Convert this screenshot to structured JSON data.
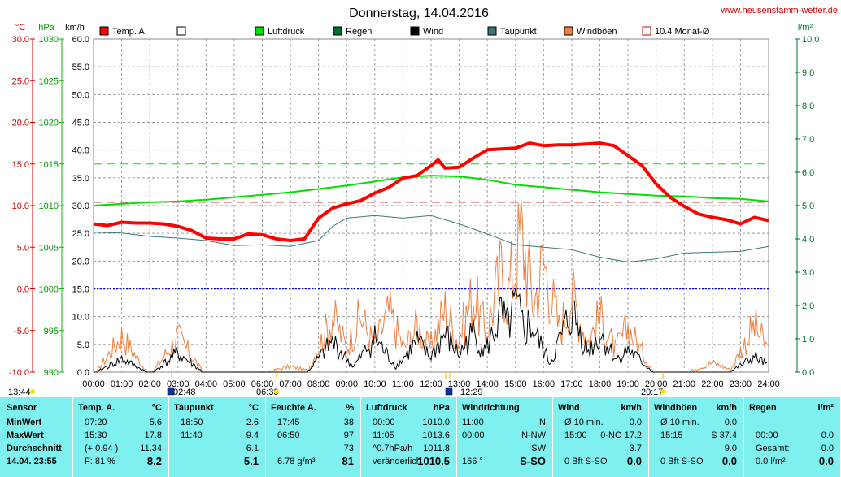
{
  "page": {
    "title": "Donnerstag, 14.04.2016",
    "site": "www.heusenstamm-wetter.de"
  },
  "colors": {
    "temp": "#ff0000",
    "luftdruck": "#00e000",
    "regen": "#007030",
    "wind": "#000000",
    "taupunkt": "#3a7878",
    "windboeen": "#f08040",
    "monat": "#c00000",
    "stats_bg": "#7ff0f0"
  },
  "chart_data": {
    "type": "line",
    "title": "Donnerstag, 14.04.2016",
    "x_ticks": [
      "00:00",
      "01:00",
      "02:00",
      "03:00",
      "04:00",
      "05:00",
      "06:00",
      "07:00",
      "08:00",
      "09:00",
      "10:00",
      "11:00",
      "12:00",
      "13:00",
      "14:00",
      "15:00",
      "16:00",
      "17:00",
      "18:00",
      "19:00",
      "20:00",
      "21:00",
      "22:00",
      "23:00",
      "24:00"
    ],
    "axes": {
      "temp": {
        "unit": "°C",
        "ticks": [
          "30.0",
          "25.0",
          "20.0",
          "15.0",
          "10.0",
          "5.0",
          "0.0",
          "-5.0",
          "-10.0"
        ],
        "range": [
          -10,
          30
        ]
      },
      "pressure": {
        "unit": "hPa",
        "ticks": [
          "1030",
          "1025",
          "1020",
          "1015",
          "1010",
          "1005",
          "1000",
          "995",
          "990"
        ],
        "range": [
          990,
          1030
        ]
      },
      "wind": {
        "unit": "km/h",
        "ticks": [
          "60.0",
          "55.0",
          "50.0",
          "45.0",
          "40.0",
          "35.0",
          "30.0",
          "25.0",
          "20.0",
          "15.0",
          "10.0",
          "5.0",
          "0.0"
        ],
        "range": [
          0,
          60
        ]
      },
      "rain": {
        "unit": "l/m²",
        "ticks": [
          "10.0",
          "9.0",
          "8.0",
          "7.0",
          "6.0",
          "5.0",
          "4.0",
          "3.0",
          "2.0",
          "1.0",
          "0.0"
        ],
        "range": [
          0,
          10
        ]
      }
    },
    "legend": [
      {
        "label": "Temp. A.",
        "color": "#ff0000",
        "style": "filled"
      },
      {
        "label": "",
        "color": "#000000",
        "style": "empty"
      },
      {
        "label": "Luftdruck",
        "color": "#00e000",
        "style": "filled"
      },
      {
        "label": "Regen",
        "color": "#007030",
        "style": "filled"
      },
      {
        "label": "Wind",
        "color": "#000000",
        "style": "filled"
      },
      {
        "label": "Taupunkt",
        "color": "#3a7878",
        "style": "filled"
      },
      {
        "label": "Windböen",
        "color": "#f08040",
        "style": "filled"
      },
      {
        "label": "10.4 Monat-Ø",
        "color": "#c00000",
        "style": "empty"
      }
    ],
    "series": [
      {
        "name": "Temp. A.",
        "axis": "temp",
        "x": [
          0,
          0.5,
          1,
          1.5,
          2,
          2.5,
          3,
          3.5,
          4,
          4.5,
          5,
          5.5,
          6,
          6.5,
          7,
          7.5,
          8,
          8.5,
          9,
          9.5,
          10,
          10.5,
          11,
          11.5,
          12,
          12.25,
          12.5,
          13,
          13.5,
          14,
          14.5,
          15,
          15.5,
          16,
          16.5,
          17,
          17.5,
          18,
          18.5,
          19,
          19.5,
          20,
          20.5,
          21,
          21.5,
          22,
          22.5,
          23,
          23.5,
          24
        ],
        "values": [
          7.8,
          7.6,
          8.0,
          7.9,
          7.9,
          7.8,
          7.5,
          7.0,
          6.1,
          6.0,
          6.0,
          6.6,
          6.5,
          6.0,
          5.8,
          6.0,
          8.5,
          9.7,
          10.2,
          10.6,
          11.5,
          12.2,
          13.3,
          13.6,
          14.8,
          15.5,
          14.5,
          14.6,
          15.7,
          16.7,
          16.8,
          16.9,
          17.5,
          17.2,
          17.3,
          17.3,
          17.4,
          17.5,
          17.2,
          16.0,
          14.8,
          12.6,
          11.0,
          9.9,
          9.0,
          8.6,
          8.3,
          7.8,
          8.6,
          8.2
        ]
      },
      {
        "name": "Luftdruck",
        "axis": "pressure",
        "x": [
          0,
          1,
          2,
          3,
          4,
          5,
          6,
          7,
          8,
          9,
          10,
          11,
          12,
          13,
          14,
          15,
          16,
          17,
          18,
          19,
          20,
          21,
          22,
          23,
          24
        ],
        "values": [
          1010.0,
          1010.2,
          1010.4,
          1010.5,
          1010.7,
          1011.0,
          1011.3,
          1011.6,
          1012.0,
          1012.4,
          1012.9,
          1013.4,
          1013.6,
          1013.5,
          1013.1,
          1012.5,
          1012.2,
          1011.9,
          1011.6,
          1011.4,
          1011.2,
          1011.1,
          1010.9,
          1010.8,
          1010.5
        ]
      },
      {
        "name": "Taupunkt",
        "axis": "temp",
        "x": [
          0,
          1,
          2,
          3,
          4,
          5,
          6,
          7,
          8,
          8.5,
          9,
          10,
          11,
          12,
          13,
          14,
          15,
          16,
          17,
          18,
          19,
          20,
          21,
          22,
          23,
          24
        ],
        "values": [
          6.8,
          6.7,
          6.3,
          6.1,
          5.8,
          5.2,
          5.3,
          5.1,
          5.8,
          7.5,
          8.5,
          8.8,
          8.5,
          8.8,
          7.8,
          6.6,
          5.3,
          5.0,
          4.7,
          3.8,
          3.2,
          3.6,
          4.3,
          4.4,
          4.5,
          5.1
        ]
      },
      {
        "name": "Windböen",
        "axis": "wind",
        "peaks": [
          [
            1.0,
            9.8
          ],
          [
            3.0,
            9.5
          ],
          [
            7.0,
            1.5
          ],
          [
            8.5,
            15.0
          ],
          [
            9.5,
            15.0
          ],
          [
            10.5,
            16.0
          ],
          [
            11.5,
            12.5
          ],
          [
            12.5,
            17.0
          ],
          [
            13.5,
            21.0
          ],
          [
            14.5,
            27.0
          ],
          [
            15.0,
            30.0
          ],
          [
            15.2,
            37.4
          ],
          [
            16.0,
            30.0
          ],
          [
            17.0,
            21.0
          ],
          [
            18.0,
            15.0
          ],
          [
            19.0,
            12.0
          ],
          [
            22.0,
            2.5
          ],
          [
            23.5,
            12.5
          ]
        ]
      },
      {
        "name": "Wind",
        "axis": "wind",
        "peaks": [
          [
            1.0,
            3.5
          ],
          [
            3.0,
            5.0
          ],
          [
            8.5,
            8.0
          ],
          [
            10.0,
            9.0
          ],
          [
            11.5,
            8.0
          ],
          [
            12.5,
            10.0
          ],
          [
            13.5,
            10.5
          ],
          [
            14.5,
            15.0
          ],
          [
            15.0,
            17.2
          ],
          [
            15.5,
            13.0
          ],
          [
            17.0,
            16.0
          ],
          [
            18.0,
            10.0
          ],
          [
            19.0,
            6.0
          ],
          [
            23.5,
            4.0
          ]
        ]
      }
    ],
    "reference_lines": [
      {
        "axis": "pressure",
        "value": 1015,
        "color": "#00e000",
        "style": "dashed"
      },
      {
        "axis": "temp",
        "value": 10.4,
        "color": "#c00000",
        "style": "dashed"
      },
      {
        "axis": "temp",
        "value": 0,
        "color": "#0000ff",
        "style": "dotted"
      }
    ],
    "events": [
      {
        "time": "13:44"
      },
      {
        "time": "02:48"
      },
      {
        "time": "06:33"
      },
      {
        "time": "12:29"
      },
      {
        "time": "20:17"
      }
    ]
  },
  "stats": {
    "cols": [
      {
        "head": [
          "Sensor",
          ""
        ],
        "rows": [
          [
            "MinWert",
            ""
          ],
          [
            "MaxWert",
            ""
          ],
          [
            "Durchschnitt",
            ""
          ],
          [
            "14.04. 23:55",
            ""
          ]
        ]
      },
      {
        "head": [
          "Temp. A.",
          "°C"
        ],
        "rows": [
          [
            "07:20",
            "5.6"
          ],
          [
            "15:30",
            "17.8"
          ],
          [
            "(+ 0.94 )",
            "11.34"
          ],
          [
            "F: 81 %",
            "8.2"
          ]
        ]
      },
      {
        "head": [
          "Taupunkt",
          "°C"
        ],
        "rows": [
          [
            "18:50",
            "2.6"
          ],
          [
            "11:40",
            "9.4"
          ],
          [
            "",
            "6.1"
          ],
          [
            "",
            "5.1"
          ]
        ]
      },
      {
        "head": [
          "Feuchte A.",
          "%"
        ],
        "rows": [
          [
            "17:45",
            "38"
          ],
          [
            "06:50",
            "97"
          ],
          [
            "",
            "73"
          ],
          [
            "6.78 g/m³",
            "81"
          ]
        ]
      },
      {
        "head": [
          "Luftdruck",
          "hPa"
        ],
        "rows": [
          [
            "00:00",
            "1010.0"
          ],
          [
            "11:05",
            "1013.6"
          ],
          [
            "^0.7hPa/h",
            "1011.8"
          ],
          [
            "veränderlich",
            "1010.5"
          ]
        ]
      },
      {
        "head": [
          "Windrichtung",
          ""
        ],
        "rows": [
          [
            "11:00",
            "N"
          ],
          [
            "00:00",
            "N-NW"
          ],
          [
            "",
            "SW"
          ],
          [
            "166 °",
            "S-SO"
          ]
        ]
      },
      {
        "head": [
          "Wind",
          "km/h"
        ],
        "rows": [
          [
            "Ø 10 min.",
            "0.0"
          ],
          [
            "15:00",
            "0-NO 17.2"
          ],
          [
            "",
            "3.7"
          ],
          [
            "0 Bft S-SO",
            "0.0"
          ]
        ]
      },
      {
        "head": [
          "Windböen",
          "km/h"
        ],
        "rows": [
          [
            "Ø 10 min.",
            "0.0"
          ],
          [
            "15:15",
            "S 37.4"
          ],
          [
            "",
            "9.0"
          ],
          [
            "0 Bft S-SO",
            "0.0"
          ]
        ]
      },
      {
        "head": [
          "Regen",
          "l/m²"
        ],
        "rows": [
          [
            "",
            ""
          ],
          [
            "00:00",
            "0.0"
          ],
          [
            "Gesamt:",
            "0.0"
          ],
          [
            "0.0 l/m²",
            "0.0"
          ]
        ]
      }
    ]
  }
}
